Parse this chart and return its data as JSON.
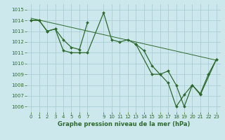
{
  "background_color": "#cce8ec",
  "grid_color": "#aacdd4",
  "line_color": "#2d6a2d",
  "marker_color": "#2d6a2d",
  "xlabel": "Graphe pression niveau de la mer (hPa)",
  "tick_color": "#2d6a2d",
  "xlim": [
    -0.5,
    23.5
  ],
  "ylim": [
    1005.5,
    1015.5
  ],
  "yticks": [
    1006,
    1007,
    1008,
    1009,
    1010,
    1011,
    1012,
    1013,
    1014,
    1015
  ],
  "xticks": [
    0,
    1,
    2,
    3,
    4,
    5,
    6,
    7,
    9,
    10,
    11,
    12,
    13,
    14,
    15,
    16,
    17,
    18,
    19,
    20,
    21,
    22,
    23
  ],
  "series": [
    {
      "x": [
        0,
        1,
        2,
        3,
        4,
        5,
        6,
        7,
        9,
        10,
        11,
        12,
        13,
        15,
        16,
        17,
        18,
        19,
        20,
        21,
        23
      ],
      "y": [
        1014.0,
        1014.0,
        1013.0,
        1013.2,
        1011.2,
        1011.0,
        1011.0,
        1011.0,
        1014.7,
        1012.2,
        1012.0,
        1012.2,
        1011.8,
        1009.0,
        1009.0,
        1009.3,
        1008.0,
        1006.0,
        1008.0,
        1007.1,
        1010.4
      ]
    },
    {
      "x": [
        0,
        1,
        2,
        3,
        4,
        5,
        6,
        7
      ],
      "y": [
        1014.0,
        1014.0,
        1013.0,
        1013.2,
        1012.2,
        1011.5,
        1011.3,
        1013.8
      ]
    },
    {
      "x": [
        0,
        23
      ],
      "y": [
        1014.2,
        1010.3
      ],
      "no_marker": true
    },
    {
      "x": [
        13,
        14,
        15,
        16,
        17,
        18,
        19,
        20,
        21,
        22,
        23
      ],
      "y": [
        1011.8,
        1011.2,
        1009.8,
        1009.0,
        1008.2,
        1006.0,
        1007.1,
        1008.0,
        1007.2,
        1009.0,
        1010.4
      ]
    }
  ]
}
